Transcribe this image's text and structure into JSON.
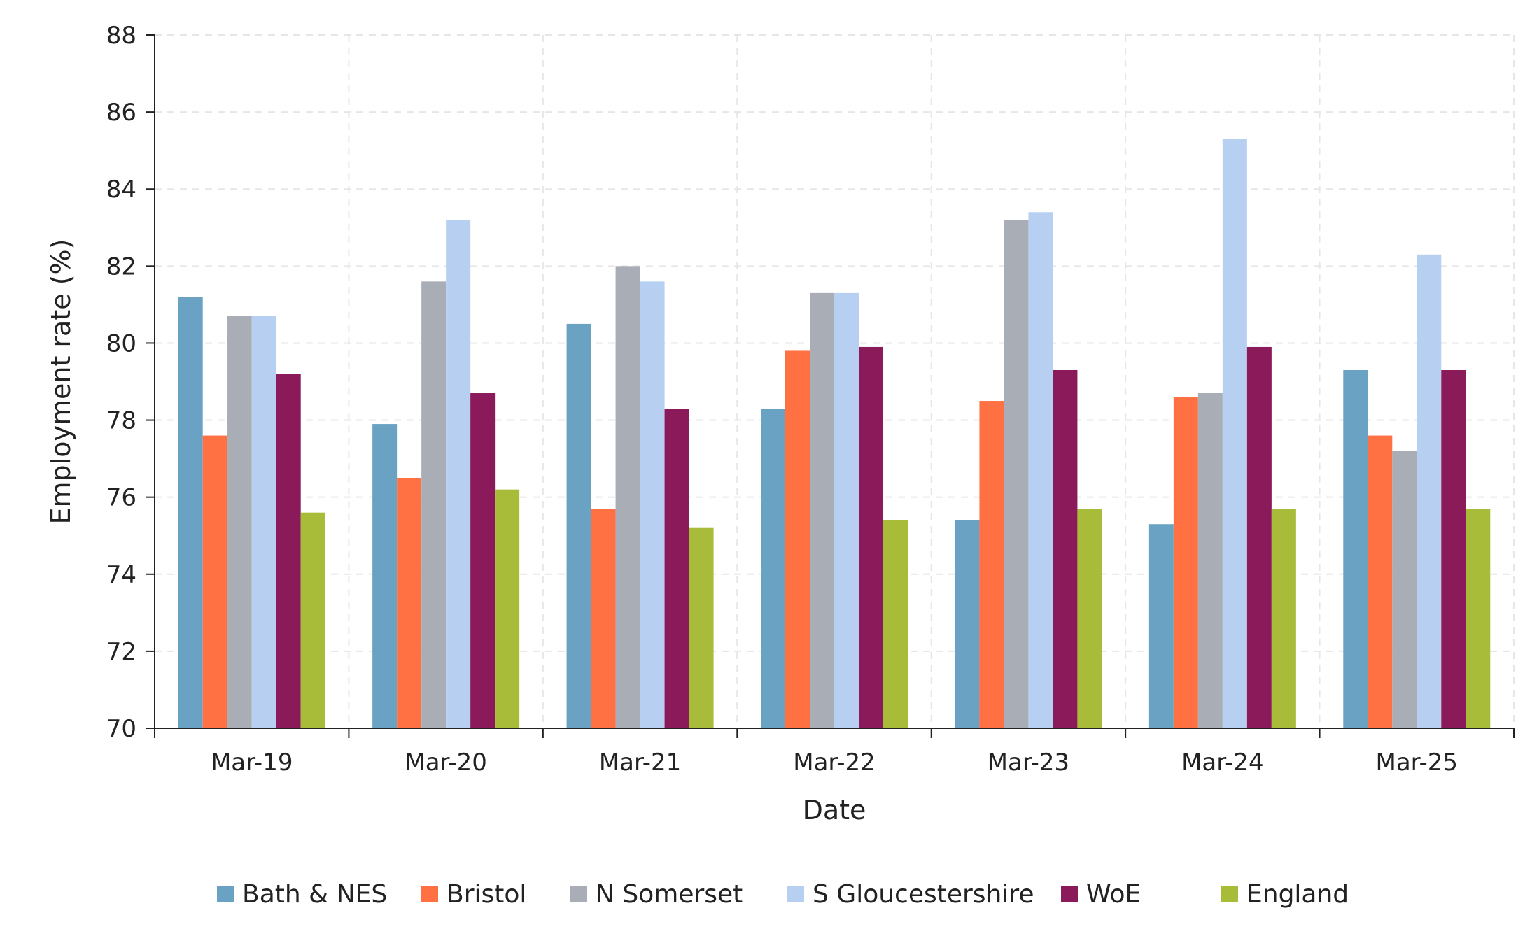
{
  "chart_data": {
    "type": "bar",
    "title": "",
    "xlabel": "Date",
    "ylabel": "Employment rate (%)",
    "ylim": [
      70,
      88
    ],
    "yticks": [
      70,
      72,
      74,
      76,
      78,
      80,
      82,
      84,
      86,
      88
    ],
    "grid": true,
    "legend_position": "bottom",
    "categories": [
      "Mar-19",
      "Mar-20",
      "Mar-21",
      "Mar-22",
      "Mar-23",
      "Mar-24",
      "Mar-25"
    ],
    "series": [
      {
        "name": "Bath & NES",
        "color": "#6aa2c4",
        "values": [
          81.2,
          77.9,
          80.5,
          78.3,
          75.4,
          75.3,
          79.3
        ]
      },
      {
        "name": "Bristol",
        "color": "#ff7043",
        "values": [
          77.6,
          76.5,
          75.7,
          79.8,
          78.5,
          78.6,
          77.6
        ]
      },
      {
        "name": "N Somerset",
        "color": "#a9adb5",
        "values": [
          80.7,
          81.6,
          82.0,
          81.3,
          83.2,
          78.7,
          77.2
        ]
      },
      {
        "name": "S Gloucestershire",
        "color": "#b7d0f2",
        "values": [
          80.7,
          83.2,
          81.6,
          81.3,
          83.4,
          85.3,
          82.3
        ]
      },
      {
        "name": "WoE",
        "color": "#8a1a5a",
        "values": [
          79.2,
          78.7,
          78.3,
          79.9,
          79.3,
          79.9,
          79.3
        ]
      },
      {
        "name": "England",
        "color": "#a8bc3a",
        "values": [
          75.6,
          76.2,
          75.2,
          75.4,
          75.7,
          75.7,
          75.7
        ]
      }
    ]
  }
}
